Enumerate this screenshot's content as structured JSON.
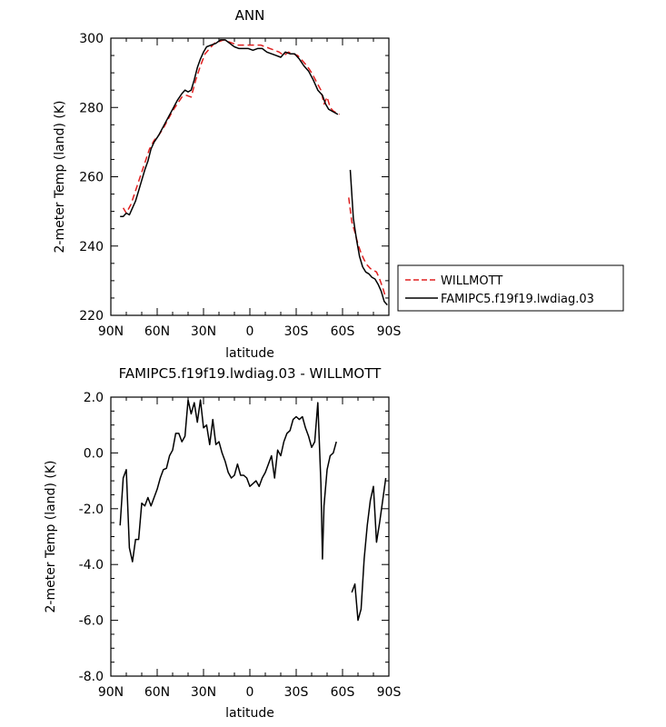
{
  "chart_data": [
    {
      "type": "line",
      "title": "ANN",
      "xlabel": "latitude",
      "ylabel": "2-meter Temp (land) (K)",
      "xlim": [
        90,
        -90
      ],
      "ylim": [
        220,
        300
      ],
      "xticks": [
        90,
        60,
        30,
        0,
        -30,
        -60,
        -90
      ],
      "xtick_labels": [
        "90N",
        "60N",
        "30N",
        "0",
        "30S",
        "60S",
        "90S"
      ],
      "yticks": [
        220,
        240,
        260,
        280,
        300
      ],
      "ytick_labels": [
        "220",
        "240",
        "260",
        "280",
        "300"
      ],
      "legend": {
        "position": "right",
        "entries": [
          "WILLMOTT",
          "FAMIPC5.f19f19.lwdiag.03"
        ]
      },
      "series": [
        {
          "name": "WILLMOTT",
          "color": "#e02020",
          "dash": "dashed",
          "segments": [
            [
              [
                82,
                251
              ],
              [
                80,
                249.5
              ],
              [
                77,
                252
              ],
              [
                74,
                256
              ],
              [
                71,
                260
              ],
              [
                68,
                264
              ],
              [
                65,
                268
              ],
              [
                62,
                270.5
              ],
              [
                59,
                272
              ],
              [
                56,
                274
              ],
              [
                53,
                276.5
              ],
              [
                50,
                279
              ],
              [
                47,
                281
              ],
              [
                44,
                283
              ],
              [
                41,
                283.5
              ],
              [
                38,
                283
              ],
              [
                35,
                288
              ],
              [
                32,
                292
              ],
              [
                29,
                295.5
              ],
              [
                26,
                297
              ],
              [
                23,
                298.5
              ],
              [
                20,
                299
              ],
              [
                17,
                299.5
              ],
              [
                14,
                299
              ],
              [
                11,
                298.5
              ],
              [
                8,
                298
              ],
              [
                5,
                298
              ],
              [
                2,
                298
              ],
              [
                -1,
                298
              ],
              [
                -4,
                298
              ],
              [
                -7,
                298
              ],
              [
                -10,
                297.5
              ],
              [
                -13,
                297
              ],
              [
                -16,
                296.5
              ],
              [
                -19,
                296
              ],
              [
                -22,
                295
              ],
              [
                -25,
                296
              ],
              [
                -28,
                295.5
              ],
              [
                -31,
                295
              ],
              [
                -34,
                293.5
              ],
              [
                -37,
                292
              ],
              [
                -40,
                290
              ],
              [
                -43,
                287.5
              ],
              [
                -46,
                285
              ],
              [
                -48,
                281
              ],
              [
                -50,
                283
              ],
              [
                -52,
                280
              ],
              [
                -54,
                279
              ],
              [
                -56,
                278.5
              ],
              [
                -58,
                278
              ]
            ],
            [
              [
                -64,
                254
              ],
              [
                -66,
                247
              ],
              [
                -68,
                244
              ],
              [
                -70,
                240.5
              ],
              [
                -72,
                238
              ],
              [
                -74,
                236
              ],
              [
                -76,
                234.5
              ],
              [
                -78,
                233.5
              ],
              [
                -80,
                233
              ],
              [
                -82,
                232.5
              ],
              [
                -84,
                230.5
              ],
              [
                -86,
                228
              ],
              [
                -88,
                225
              ]
            ]
          ]
        },
        {
          "name": "FAMIPC5.f19f19.lwdiag.03",
          "color": "#000000",
          "dash": "solid",
          "segments": [
            [
              [
                84,
                248.5
              ],
              [
                82,
                248.5
              ],
              [
                80,
                249.5
              ],
              [
                78,
                249
              ],
              [
                76,
                251
              ],
              [
                74,
                253
              ],
              [
                72,
                256
              ],
              [
                70,
                259
              ],
              [
                68,
                262
              ],
              [
                66,
                264.5
              ],
              [
                64,
                268
              ],
              [
                62,
                270
              ],
              [
                59,
                272
              ],
              [
                56,
                274.5
              ],
              [
                53,
                277
              ],
              [
                50,
                279.5
              ],
              [
                47,
                282
              ],
              [
                44,
                284
              ],
              [
                42,
                285
              ],
              [
                40,
                284.5
              ],
              [
                38,
                285
              ],
              [
                36,
                288
              ],
              [
                34,
                291.5
              ],
              [
                32,
                294
              ],
              [
                30,
                296
              ],
              [
                28,
                297.5
              ],
              [
                25,
                298
              ],
              [
                22,
                298.5
              ],
              [
                19,
                299.5
              ],
              [
                16,
                299.5
              ],
              [
                13,
                298.5
              ],
              [
                10,
                297.5
              ],
              [
                7,
                297
              ],
              [
                4,
                297
              ],
              [
                1,
                297
              ],
              [
                -2,
                296.5
              ],
              [
                -5,
                297
              ],
              [
                -8,
                297
              ],
              [
                -11,
                296
              ],
              [
                -14,
                295.5
              ],
              [
                -17,
                295
              ],
              [
                -20,
                294.5
              ],
              [
                -23,
                296
              ],
              [
                -26,
                295.5
              ],
              [
                -29,
                295.5
              ],
              [
                -32,
                294
              ],
              [
                -35,
                292
              ],
              [
                -38,
                290.5
              ],
              [
                -41,
                288
              ],
              [
                -44,
                285
              ],
              [
                -47,
                283.5
              ],
              [
                -49,
                281
              ],
              [
                -51,
                279.5
              ],
              [
                -53,
                279
              ],
              [
                -55,
                278.5
              ],
              [
                -57,
                278
              ]
            ],
            [
              [
                -65,
                262
              ],
              [
                -66,
                255
              ],
              [
                -67,
                248
              ],
              [
                -69,
                242
              ],
              [
                -71,
                237
              ],
              [
                -73,
                234
              ],
              [
                -75,
                232.5
              ],
              [
                -77,
                232
              ],
              [
                -79,
                231
              ],
              [
                -81,
                230.5
              ],
              [
                -83,
                229
              ],
              [
                -85,
                227
              ],
              [
                -87,
                224
              ],
              [
                -89,
                223
              ]
            ]
          ]
        }
      ]
    },
    {
      "type": "line",
      "title": "FAMIPC5.f19f19.lwdiag.03 - WILLMOTT",
      "xlabel": "latitude",
      "ylabel": "2-meter Temp (land) (K)",
      "xlim": [
        90,
        -90
      ],
      "ylim": [
        -8,
        2
      ],
      "xticks": [
        90,
        60,
        30,
        0,
        -30,
        -60,
        -90
      ],
      "xtick_labels": [
        "90N",
        "60N",
        "30N",
        "0",
        "30S",
        "60S",
        "90S"
      ],
      "yticks": [
        -8,
        -6,
        -4,
        -2,
        0,
        2
      ],
      "ytick_labels": [
        "-8.0",
        "-6.0",
        "-4.0",
        "-2.0",
        "0.0",
        "2.0"
      ],
      "series": [
        {
          "color": "#000000",
          "dash": "solid",
          "segments": [
            [
              [
                84,
                -2.6
              ],
              [
                82,
                -0.9
              ],
              [
                80,
                -0.6
              ],
              [
                78,
                -3.4
              ],
              [
                76,
                -3.9
              ],
              [
                74,
                -3.1
              ],
              [
                72,
                -3.1
              ],
              [
                70,
                -1.8
              ],
              [
                68,
                -1.9
              ],
              [
                66,
                -1.6
              ],
              [
                64,
                -1.9
              ],
              [
                62,
                -1.6
              ],
              [
                60,
                -1.3
              ],
              [
                58,
                -0.9
              ],
              [
                56,
                -0.6
              ],
              [
                54,
                -0.55
              ],
              [
                52,
                -0.1
              ],
              [
                50,
                0.1
              ],
              [
                48,
                0.7
              ],
              [
                46,
                0.7
              ],
              [
                44,
                0.4
              ],
              [
                42,
                0.6
              ],
              [
                40,
                1.9
              ],
              [
                38,
                1.4
              ],
              [
                36,
                1.8
              ],
              [
                34,
                1.1
              ],
              [
                32,
                1.9
              ],
              [
                30,
                0.9
              ],
              [
                28,
                1.0
              ],
              [
                26,
                0.3
              ],
              [
                24,
                1.2
              ],
              [
                22,
                0.3
              ],
              [
                20,
                0.4
              ],
              [
                18,
                0.0
              ],
              [
                16,
                -0.3
              ],
              [
                14,
                -0.7
              ],
              [
                12,
                -0.9
              ],
              [
                10,
                -0.8
              ],
              [
                8,
                -0.4
              ],
              [
                6,
                -0.8
              ],
              [
                4,
                -0.8
              ],
              [
                2,
                -0.9
              ],
              [
                0,
                -1.2
              ],
              [
                -2,
                -1.1
              ],
              [
                -4,
                -1.0
              ],
              [
                -6,
                -1.2
              ],
              [
                -8,
                -0.9
              ],
              [
                -10,
                -0.7
              ],
              [
                -12,
                -0.4
              ],
              [
                -14,
                -0.1
              ],
              [
                -16,
                -0.9
              ],
              [
                -18,
                0.1
              ],
              [
                -20,
                -0.1
              ],
              [
                -22,
                0.4
              ],
              [
                -24,
                0.7
              ],
              [
                -26,
                0.8
              ],
              [
                -28,
                1.2
              ],
              [
                -30,
                1.3
              ],
              [
                -32,
                1.2
              ],
              [
                -34,
                1.3
              ],
              [
                -36,
                0.9
              ],
              [
                -38,
                0.6
              ],
              [
                -40,
                0.2
              ],
              [
                -42,
                0.4
              ],
              [
                -44,
                1.8
              ],
              [
                -46,
                -1.1
              ],
              [
                -47,
                -3.8
              ],
              [
                -48,
                -1.9
              ],
              [
                -50,
                -0.6
              ],
              [
                -52,
                -0.1
              ],
              [
                -54,
                0.0
              ],
              [
                -56,
                0.4
              ]
            ],
            [
              [
                -66,
                -5.0
              ],
              [
                -68,
                -4.7
              ],
              [
                -70,
                -6.0
              ],
              [
                -72,
                -5.6
              ],
              [
                -74,
                -3.8
              ],
              [
                -76,
                -2.6
              ],
              [
                -78,
                -1.7
              ],
              [
                -80,
                -1.2
              ],
              [
                -82,
                -3.2
              ],
              [
                -84,
                -2.5
              ],
              [
                -86,
                -1.7
              ],
              [
                -88,
                -0.9
              ]
            ]
          ]
        }
      ]
    }
  ]
}
